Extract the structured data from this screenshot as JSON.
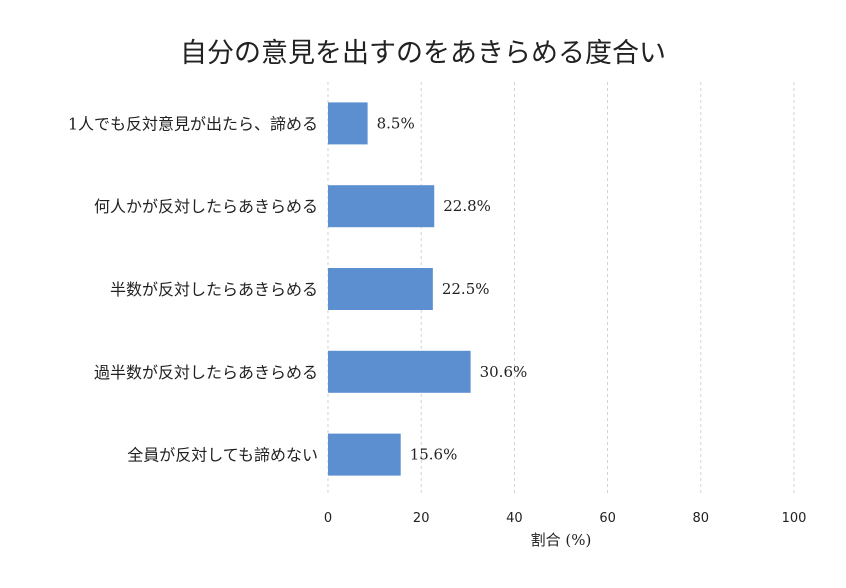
{
  "chart_data": {
    "type": "bar",
    "orientation": "horizontal",
    "title": "自分の意見を出すのをあきらめる度合い",
    "xlabel": "割合 (%)",
    "ylabel": "",
    "xlim": [
      0,
      100
    ],
    "xticks": [
      0,
      20,
      40,
      60,
      80,
      100
    ],
    "grid": "vertical dashed",
    "bar_color": "#5b8fd0",
    "categories": [
      "1人でも反対意見が出たら、諦める",
      "何人かが反対したらあきらめる",
      "半数が反対したらあきらめる",
      "過半数が反対したらあきらめる",
      "全員が反対しても諦めない"
    ],
    "values": [
      8.5,
      22.8,
      22.5,
      30.6,
      15.6
    ],
    "value_labels": [
      "8.5%",
      "22.8%",
      "22.5%",
      "30.6%",
      "15.6%"
    ]
  }
}
